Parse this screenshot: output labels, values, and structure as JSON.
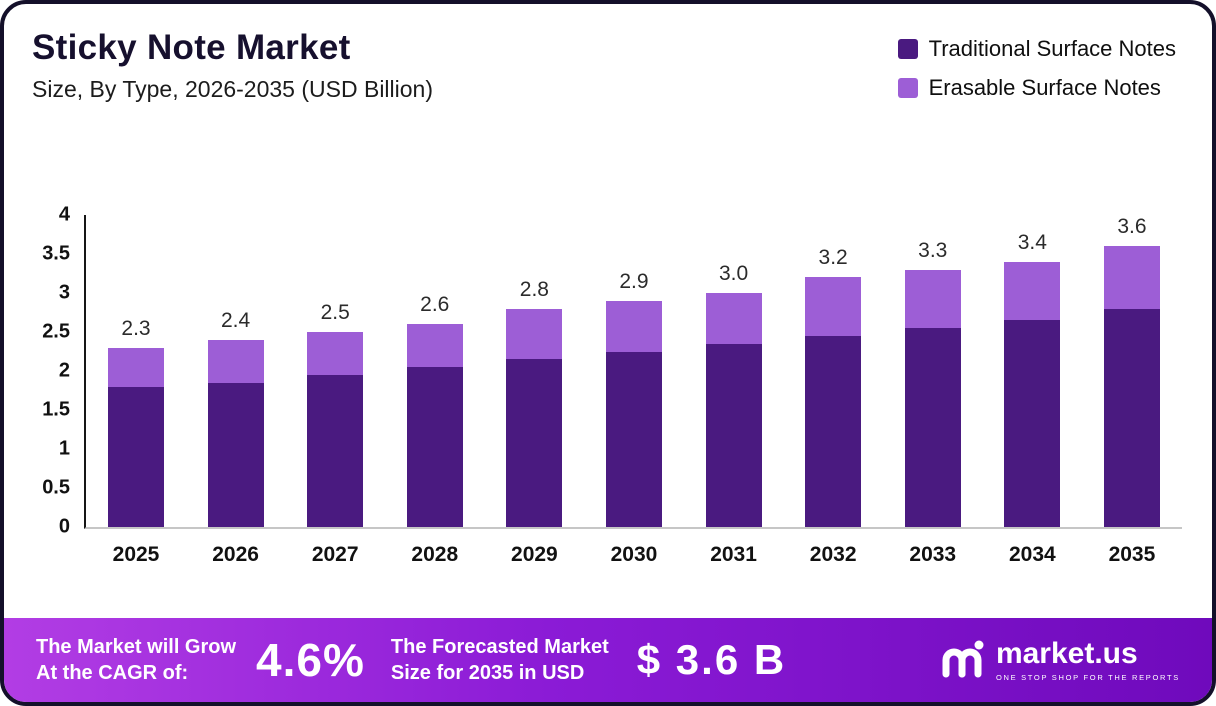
{
  "header": {
    "title": "Sticky Note Market",
    "subtitle": "Size, By Type, 2026-2035 (USD Billion)"
  },
  "chart_data": {
    "type": "bar",
    "stacked": true,
    "title": "Sticky Note Market Size, By Type, 2026-2035 (USD Billion)",
    "categories": [
      "2025",
      "2026",
      "2027",
      "2028",
      "2029",
      "2030",
      "2031",
      "2032",
      "2033",
      "2034",
      "2035"
    ],
    "series": [
      {
        "name": "Traditional Surface Notes",
        "color": "#4a1a80",
        "values": [
          1.8,
          1.85,
          1.95,
          2.05,
          2.15,
          2.25,
          2.35,
          2.45,
          2.55,
          2.65,
          2.8
        ]
      },
      {
        "name": "Erasable Surface Notes",
        "color": "#9d5ed6",
        "values": [
          0.5,
          0.55,
          0.55,
          0.55,
          0.65,
          0.65,
          0.65,
          0.75,
          0.75,
          0.75,
          0.8
        ]
      }
    ],
    "totals": [
      2.3,
      2.4,
      2.5,
      2.6,
      2.8,
      2.9,
      3.0,
      3.2,
      3.3,
      3.4,
      3.6
    ],
    "total_labels": [
      "2.3",
      "2.4",
      "2.5",
      "2.6",
      "2.8",
      "2.9",
      "3.0",
      "3.2",
      "3.3",
      "3.4",
      "3.6"
    ],
    "xlabel": "",
    "ylabel": "",
    "ylim": [
      0,
      4
    ],
    "yticks": [
      "4",
      "3.5",
      "3",
      "2.5",
      "2",
      "1.5",
      "1",
      "0.5",
      "0"
    ],
    "grid": false,
    "legend_position": "top-right"
  },
  "footer": {
    "cagr_label_line1": "The Market will Grow",
    "cagr_label_line2": "At the CAGR of:",
    "cagr_value": "4.6%",
    "forecast_label_line1": "The Forecasted Market",
    "forecast_label_line2": "Size for 2035 in USD",
    "forecast_value": "$ 3.6 B",
    "brand": "market.us",
    "brand_tagline": "ONE STOP SHOP FOR THE REPORTS"
  }
}
